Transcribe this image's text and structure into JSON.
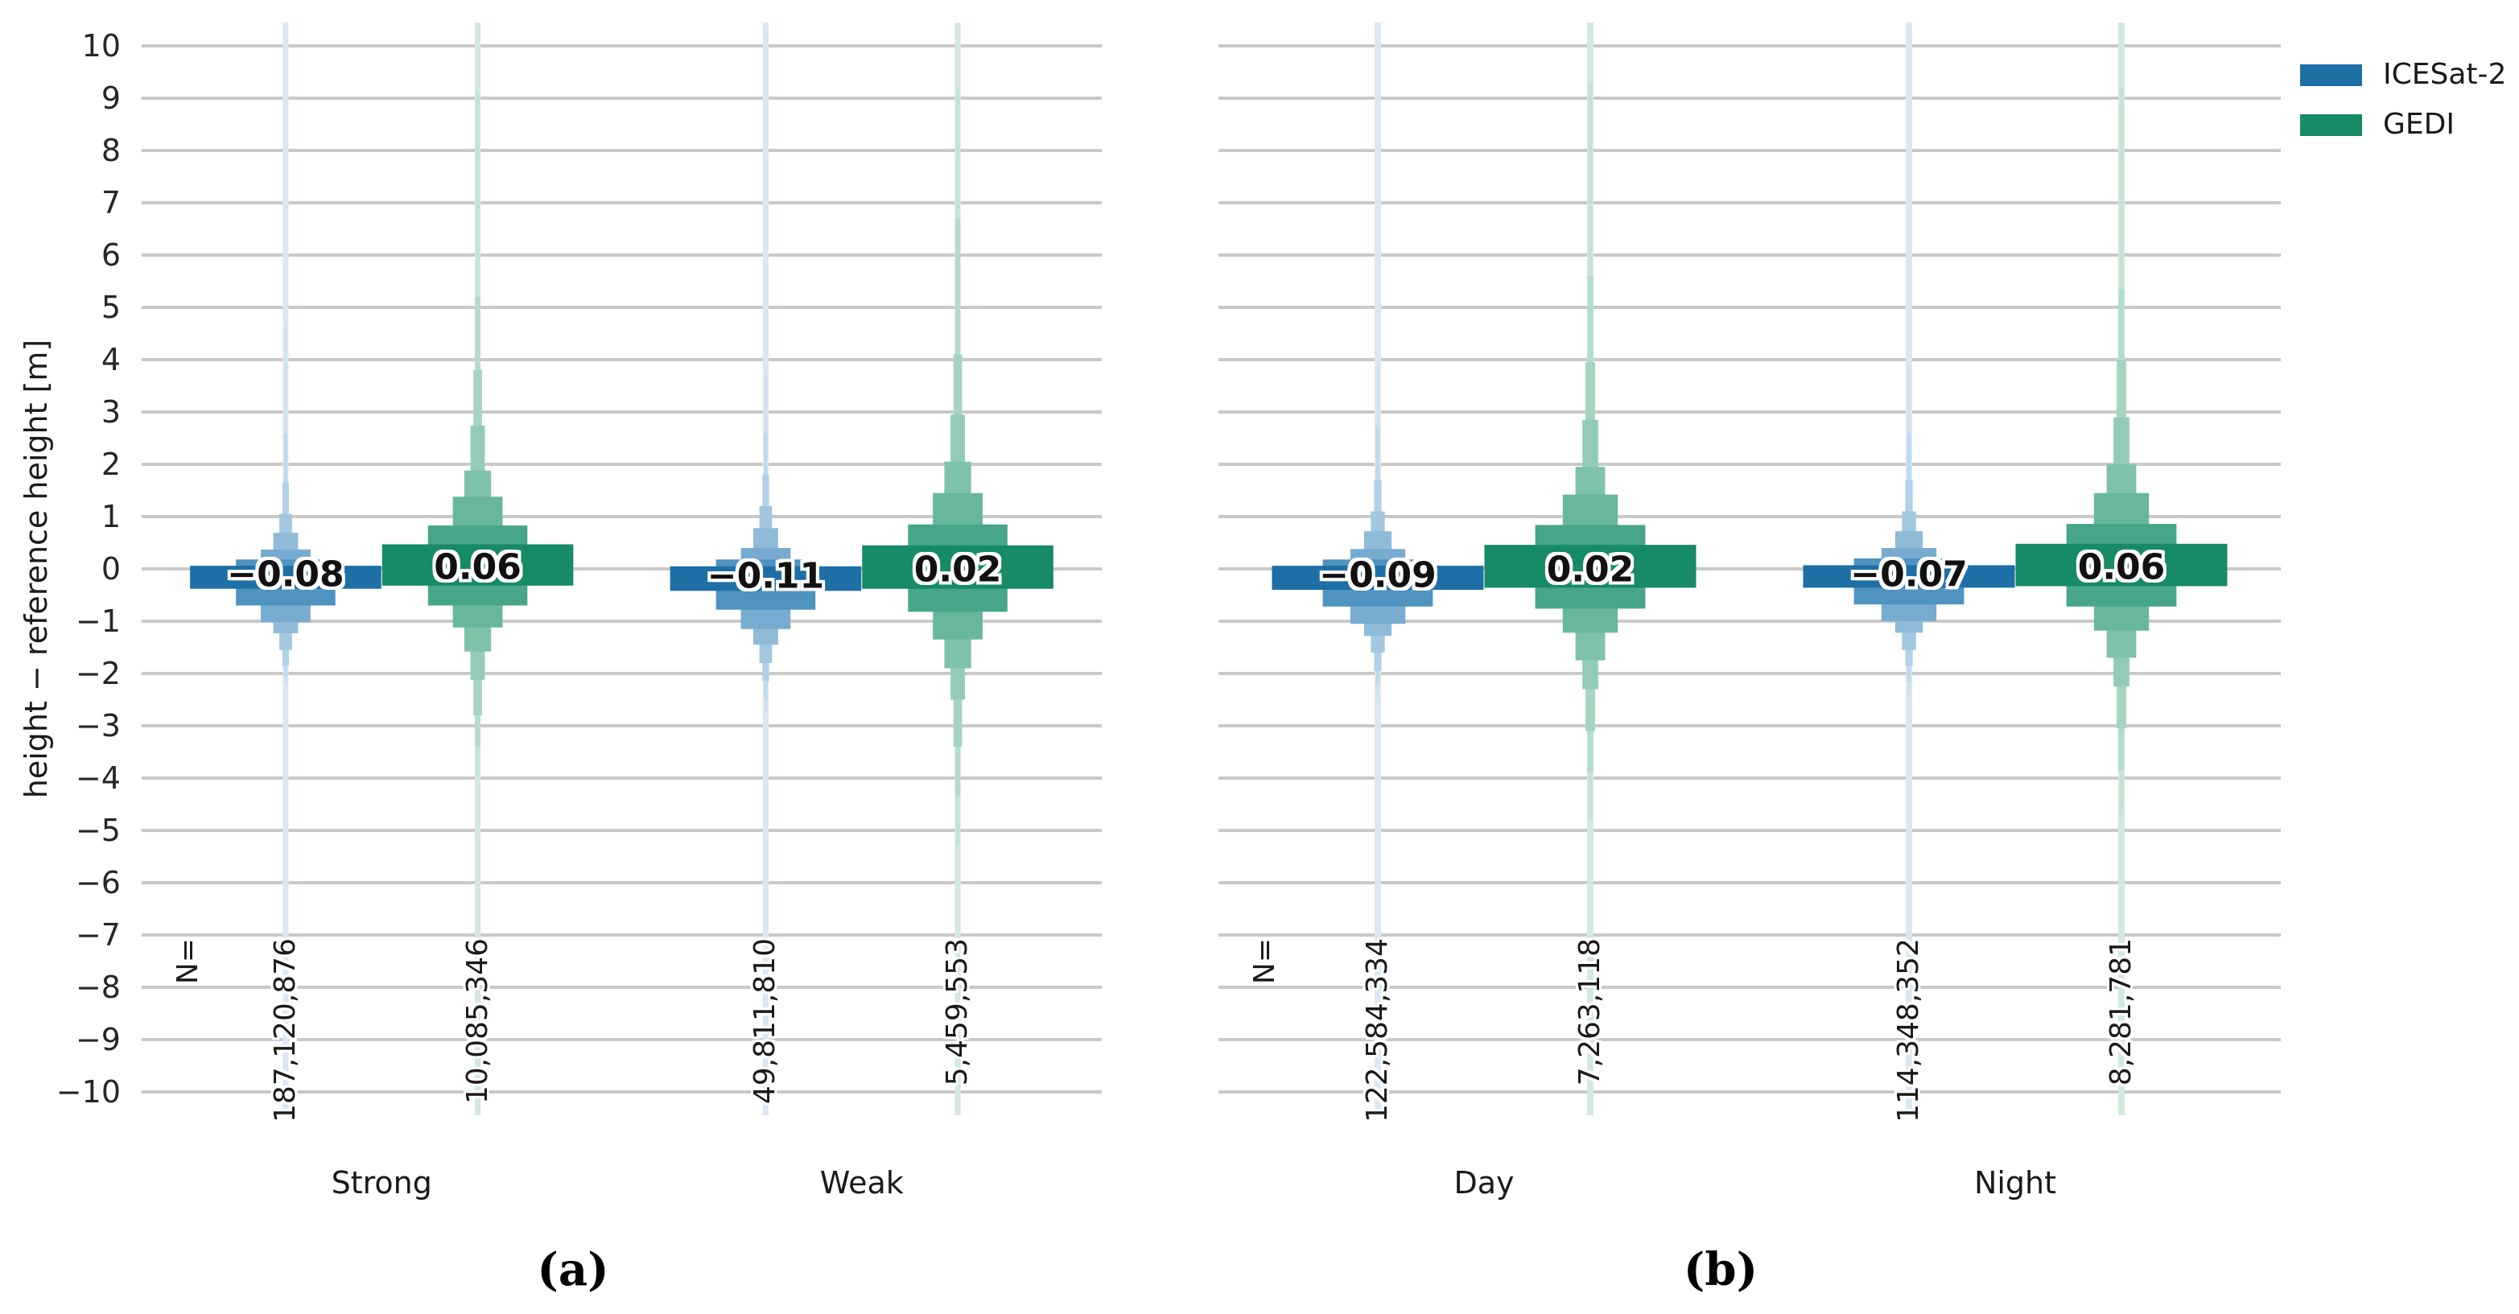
{
  "chart_data": {
    "type": "boxen",
    "description": "Letter-value (boxen) plots of height minus reference height for ICESat-2 and GEDI, split by beam strength (a) and by acquisition time (b)",
    "ylabel": "height − reference height [m]",
    "ylim": [
      -10.45,
      10.45
    ],
    "yticks": [
      10,
      9,
      8,
      7,
      6,
      5,
      4,
      3,
      2,
      1,
      0,
      -1,
      -2,
      -3,
      -4,
      -5,
      -6,
      -7,
      -8,
      -9,
      -10
    ],
    "grid": "horizontal gray gridlines at every integer",
    "n_prefix_label": "N=",
    "legend": {
      "position": "top-right outside plot",
      "entries": [
        {
          "label": "ICESat-2",
          "color": "#1e6fa5"
        },
        {
          "label": "GEDI",
          "color": "#178a68"
        }
      ]
    },
    "palette": {
      "ICESat-2": [
        "#1e6fa5",
        "#4f93c1",
        "#77acd0",
        "#8fbbd9",
        "#a2c7e0",
        "#b2d1e6",
        "#c0daeb",
        "#cde2f0",
        "#d9e9f4"
      ],
      "GEDI": [
        "#178a68",
        "#47a689",
        "#68b79c",
        "#7fc2aa",
        "#93ccb6",
        "#a5d4c0",
        "#b4dcca",
        "#c3e3d3",
        "#d1eadc"
      ]
    },
    "panels": [
      {
        "caption": "(a)",
        "categories": [
          {
            "label": "Strong",
            "groups": [
              {
                "series": "ICESat-2",
                "median": -0.08,
                "median_label": "−0.08",
                "count": "187,120,876",
                "levels": [
                  [
                    0.06,
                    -0.38,
                    1
                  ],
                  [
                    0.18,
                    -0.7,
                    0.52
                  ],
                  [
                    0.37,
                    -1.02,
                    0.26
                  ],
                  [
                    0.69,
                    -1.23,
                    0.13
                  ],
                  [
                    1.05,
                    -1.55,
                    0.066
                  ],
                  [
                    1.65,
                    -1.85,
                    0.035
                  ],
                  [
                    2.6,
                    -2.05,
                    0.02
                  ],
                  [
                    4.7,
                    -2.2,
                    0.012
                  ],
                  [
                    6.35,
                    -2.4,
                    0.007
                  ]
                ]
              },
              {
                "series": "GEDI",
                "median": 0.06,
                "median_label": "0.06",
                "count": "10,085,346",
                "levels": [
                  [
                    0.47,
                    -0.32,
                    1
                  ],
                  [
                    0.83,
                    -0.7,
                    0.52
                  ],
                  [
                    1.38,
                    -1.12,
                    0.26
                  ],
                  [
                    1.88,
                    -1.58,
                    0.14
                  ],
                  [
                    2.74,
                    -2.12,
                    0.075
                  ],
                  [
                    3.8,
                    -2.8,
                    0.045
                  ],
                  [
                    5.2,
                    -3.4,
                    0.028
                  ],
                  [
                    9.1,
                    -3.95,
                    0.018
                  ],
                  [
                    10.45,
                    -4.35,
                    0.011
                  ]
                ]
              }
            ]
          },
          {
            "label": "Weak",
            "groups": [
              {
                "series": "ICESat-2",
                "median": -0.11,
                "median_label": "−0.11",
                "count": "49,811,810",
                "levels": [
                  [
                    0.05,
                    -0.42,
                    1
                  ],
                  [
                    0.18,
                    -0.78,
                    0.52
                  ],
                  [
                    0.4,
                    -1.15,
                    0.26
                  ],
                  [
                    0.78,
                    -1.45,
                    0.13
                  ],
                  [
                    1.2,
                    -1.8,
                    0.066
                  ],
                  [
                    1.8,
                    -2.15,
                    0.035
                  ],
                  [
                    2.6,
                    -2.5,
                    0.02
                  ],
                  [
                    3.8,
                    -2.75,
                    0.012
                  ]
                ]
              },
              {
                "series": "GEDI",
                "median": 0.02,
                "median_label": "0.02",
                "count": "5,459,553",
                "levels": [
                  [
                    0.45,
                    -0.38,
                    1
                  ],
                  [
                    0.85,
                    -0.82,
                    0.52
                  ],
                  [
                    1.45,
                    -1.35,
                    0.26
                  ],
                  [
                    2.05,
                    -1.9,
                    0.14
                  ],
                  [
                    2.95,
                    -2.5,
                    0.075
                  ],
                  [
                    4.1,
                    -3.4,
                    0.045
                  ],
                  [
                    6.7,
                    -4.35,
                    0.028
                  ],
                  [
                    9.2,
                    -5.3,
                    0.018
                  ],
                  [
                    10.45,
                    -5.8,
                    0.011
                  ]
                ]
              }
            ]
          }
        ]
      },
      {
        "caption": "(b)",
        "categories": [
          {
            "label": "Day",
            "groups": [
              {
                "series": "ICESat-2",
                "median": -0.09,
                "median_label": "−0.09",
                "count": "122,584,334",
                "levels": [
                  [
                    0.06,
                    -0.4,
                    1
                  ],
                  [
                    0.18,
                    -0.72,
                    0.52
                  ],
                  [
                    0.38,
                    -1.05,
                    0.26
                  ],
                  [
                    0.72,
                    -1.28,
                    0.13
                  ],
                  [
                    1.1,
                    -1.6,
                    0.066
                  ],
                  [
                    1.7,
                    -1.95,
                    0.035
                  ],
                  [
                    2.7,
                    -2.2,
                    0.02
                  ],
                  [
                    3.9,
                    -2.45,
                    0.012
                  ],
                  [
                    6.6,
                    -2.65,
                    0.007
                  ]
                ]
              },
              {
                "series": "GEDI",
                "median": 0.02,
                "median_label": "0.02",
                "count": "7,263,118",
                "levels": [
                  [
                    0.46,
                    -0.36,
                    1
                  ],
                  [
                    0.84,
                    -0.76,
                    0.52
                  ],
                  [
                    1.42,
                    -1.22,
                    0.26
                  ],
                  [
                    1.95,
                    -1.75,
                    0.14
                  ],
                  [
                    2.85,
                    -2.3,
                    0.075
                  ],
                  [
                    3.95,
                    -3.1,
                    0.045
                  ],
                  [
                    5.6,
                    -3.9,
                    0.028
                  ],
                  [
                    9.3,
                    -4.75,
                    0.018
                  ],
                  [
                    10.45,
                    -5.9,
                    0.011
                  ]
                ]
              }
            ]
          },
          {
            "label": "Night",
            "groups": [
              {
                "series": "ICESat-2",
                "median": -0.07,
                "median_label": "−0.07",
                "count": "114,348,352",
                "levels": [
                  [
                    0.07,
                    -0.36,
                    1
                  ],
                  [
                    0.2,
                    -0.68,
                    0.52
                  ],
                  [
                    0.4,
                    -1.0,
                    0.26
                  ],
                  [
                    0.72,
                    -1.22,
                    0.13
                  ],
                  [
                    1.1,
                    -1.55,
                    0.066
                  ],
                  [
                    1.7,
                    -1.85,
                    0.035
                  ],
                  [
                    2.6,
                    -2.15,
                    0.02
                  ],
                  [
                    3.9,
                    -2.4,
                    0.012
                  ],
                  [
                    5.3,
                    -2.6,
                    0.007
                  ]
                ]
              },
              {
                "series": "GEDI",
                "median": 0.06,
                "median_label": "0.06",
                "count": "8,281,781",
                "levels": [
                  [
                    0.48,
                    -0.33,
                    1
                  ],
                  [
                    0.86,
                    -0.72,
                    0.52
                  ],
                  [
                    1.45,
                    -1.18,
                    0.26
                  ],
                  [
                    2.0,
                    -1.7,
                    0.14
                  ],
                  [
                    2.9,
                    -2.25,
                    0.075
                  ],
                  [
                    4.0,
                    -3.05,
                    0.045
                  ],
                  [
                    5.35,
                    -3.85,
                    0.028
                  ],
                  [
                    9.2,
                    -4.7,
                    0.018
                  ],
                  [
                    10.3,
                    -5.5,
                    0.011
                  ]
                ]
              }
            ]
          }
        ]
      }
    ]
  }
}
